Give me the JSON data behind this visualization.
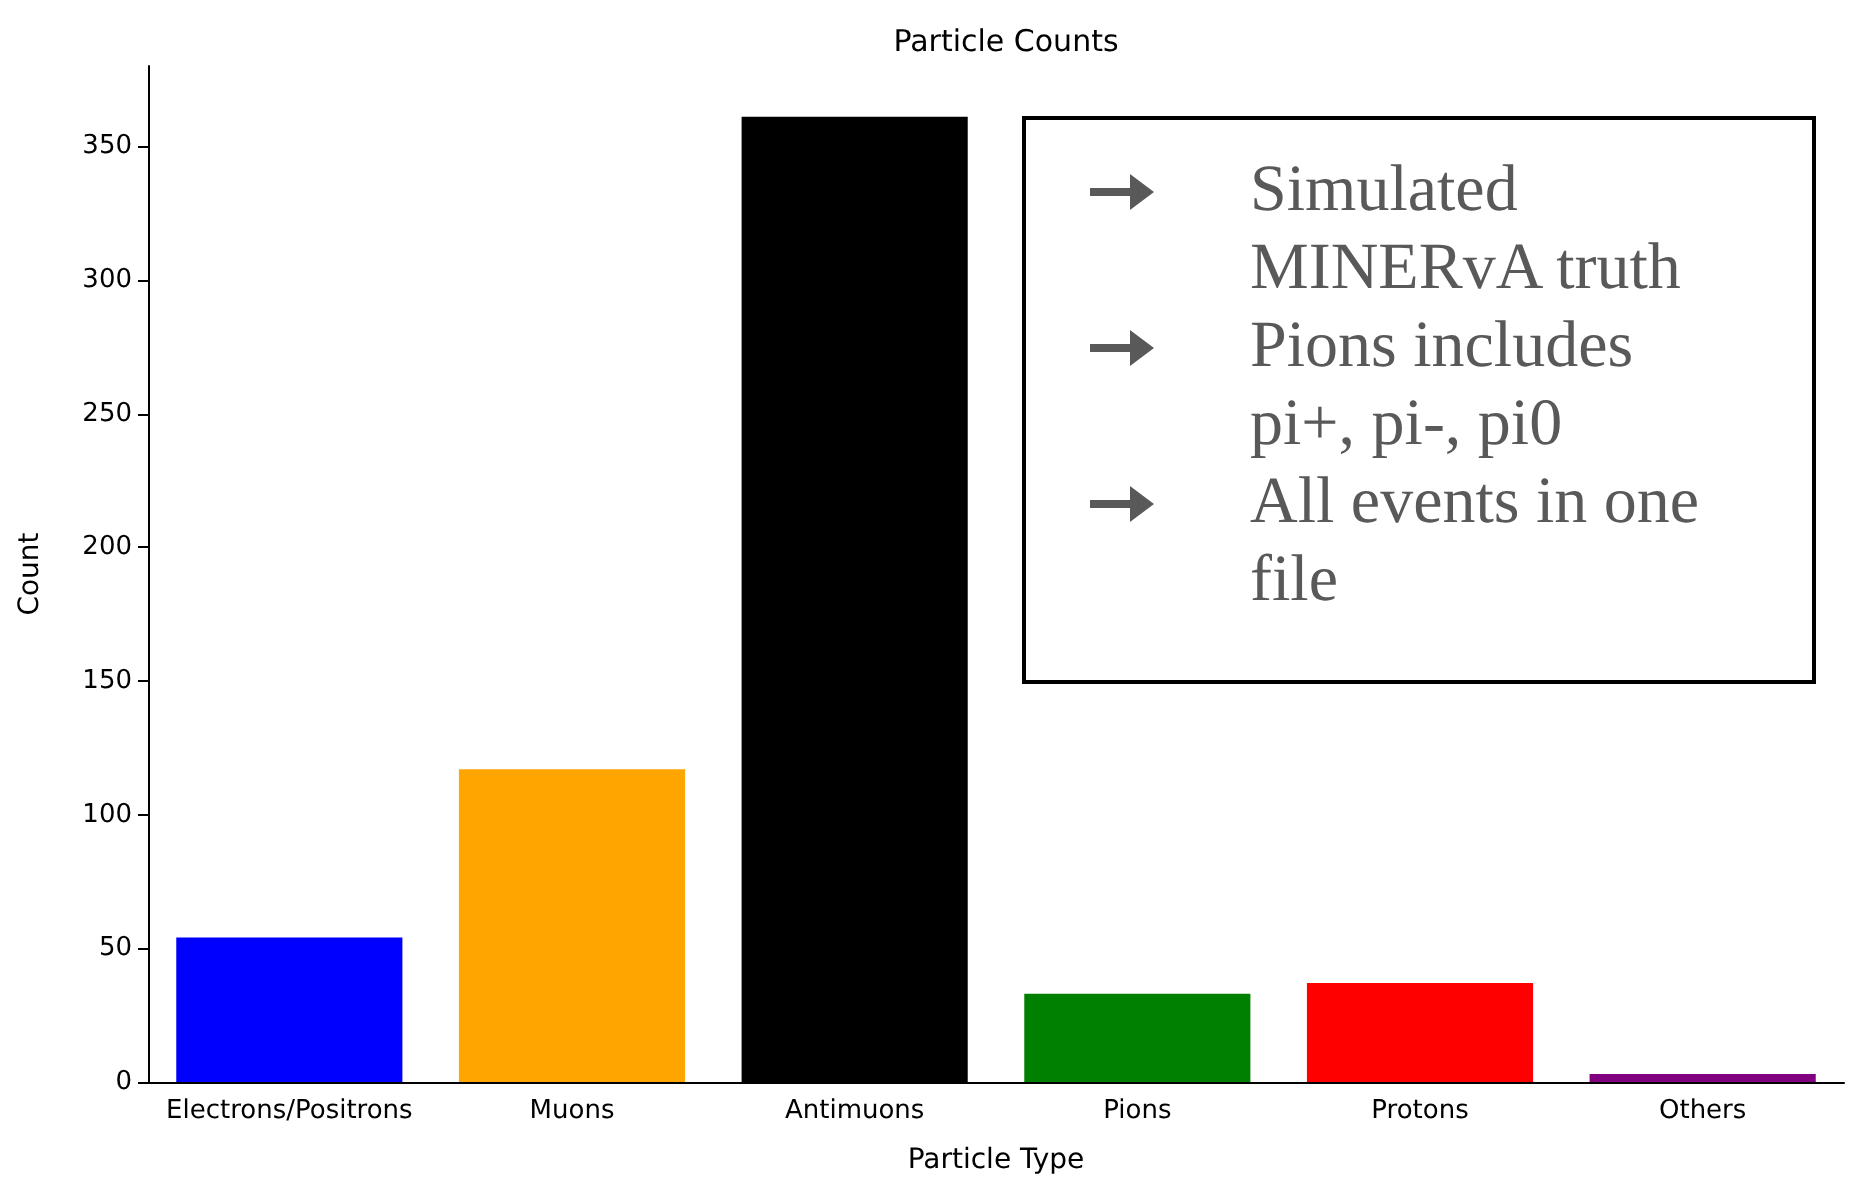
{
  "chart_data": {
    "type": "bar",
    "title": "Particle Counts",
    "xlabel": "Particle Type",
    "ylabel": "Count",
    "categories": [
      "Electrons/Positrons",
      "Muons",
      "Antimuons",
      "Pions",
      "Protons",
      "Others"
    ],
    "values": [
      54,
      117,
      361,
      33,
      37,
      3
    ],
    "colors": [
      "#0000ff",
      "#ffa500",
      "#000000",
      "#008000",
      "#ff0000",
      "#800080"
    ],
    "ylim": [
      0,
      380
    ],
    "yticks": [
      0,
      50,
      100,
      150,
      200,
      250,
      300,
      350
    ],
    "grid": false,
    "annotations": [
      "Simulated MINERvA truth",
      "Pions includes pi+, pi-, pi0",
      "All events in one file"
    ]
  }
}
